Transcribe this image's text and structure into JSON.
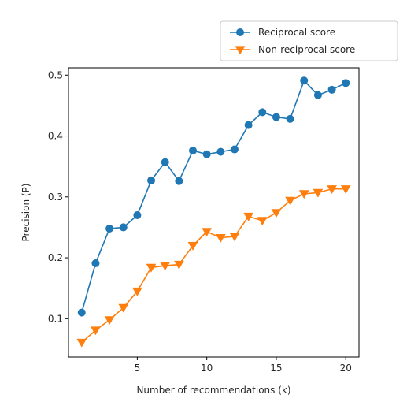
{
  "chart_data": {
    "type": "line",
    "title": "",
    "xlabel": "Number of recommendations (k)",
    "ylabel": "Precision (P)",
    "xlim": [
      0.05,
      20.95
    ],
    "ylim": [
      0.037,
      0.512
    ],
    "xticks": [
      5,
      10,
      15,
      20
    ],
    "yticks": [
      0.1,
      0.2,
      0.3,
      0.4,
      0.5
    ],
    "xtick_labels": [
      "5",
      "10",
      "15",
      "20"
    ],
    "ytick_labels": [
      "0.1",
      "0.2",
      "0.3",
      "0.4",
      "0.5"
    ],
    "grid": false,
    "legend_position": "upper-right-outside",
    "x": [
      1,
      2,
      3,
      4,
      5,
      6,
      7,
      8,
      9,
      10,
      11,
      12,
      13,
      14,
      15,
      16,
      17,
      18,
      19,
      20
    ],
    "series": [
      {
        "name": "Reciprocal score",
        "color": "#1f77b4",
        "marker": "circle",
        "values": [
          0.11,
          0.191,
          0.248,
          0.25,
          0.27,
          0.327,
          0.357,
          0.326,
          0.376,
          0.37,
          0.374,
          0.378,
          0.418,
          0.439,
          0.431,
          0.428,
          0.491,
          0.467,
          0.476,
          0.487
        ]
      },
      {
        "name": "Non-reciprocal score",
        "color": "#ff7f0e",
        "marker": "triangle-down",
        "values": [
          0.061,
          0.081,
          0.098,
          0.118,
          0.145,
          0.184,
          0.187,
          0.189,
          0.22,
          0.243,
          0.233,
          0.235,
          0.268,
          0.261,
          0.274,
          0.294,
          0.305,
          0.307,
          0.313,
          0.313
        ]
      }
    ]
  }
}
